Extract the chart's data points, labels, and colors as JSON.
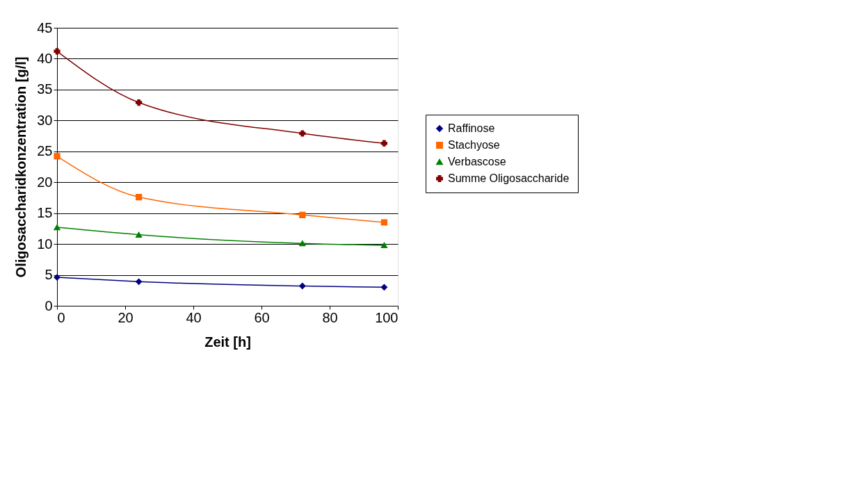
{
  "chart_data": {
    "type": "line",
    "xlabel": "Zeit [h]",
    "ylabel": "Oligosaccharidkonzentration [g/l]",
    "x": [
      0,
      24,
      72,
      96
    ],
    "series": [
      {
        "name": "Raffinose",
        "color": "#000080",
        "marker": "diamond",
        "values": [
          4.6,
          3.9,
          3.2,
          3.0
        ]
      },
      {
        "name": "Stachyose",
        "color": "#ff6600",
        "marker": "square",
        "values": [
          24.2,
          17.6,
          14.7,
          13.5
        ]
      },
      {
        "name": "Verbascose",
        "color": "#008000",
        "marker": "triangle",
        "values": [
          12.7,
          11.5,
          10.1,
          9.8
        ]
      },
      {
        "name": "Summe Oligosaccharide",
        "color": "#800000",
        "marker": "cross",
        "values": [
          41.2,
          32.9,
          27.9,
          26.3
        ]
      }
    ],
    "xlim": [
      0,
      100
    ],
    "xticks": [
      0,
      20,
      40,
      60,
      80,
      100
    ],
    "ylim": [
      0,
      45
    ],
    "yticks": [
      0,
      5,
      10,
      15,
      20,
      25,
      30,
      35,
      40,
      45
    ],
    "grid": "y",
    "legend": "right"
  }
}
